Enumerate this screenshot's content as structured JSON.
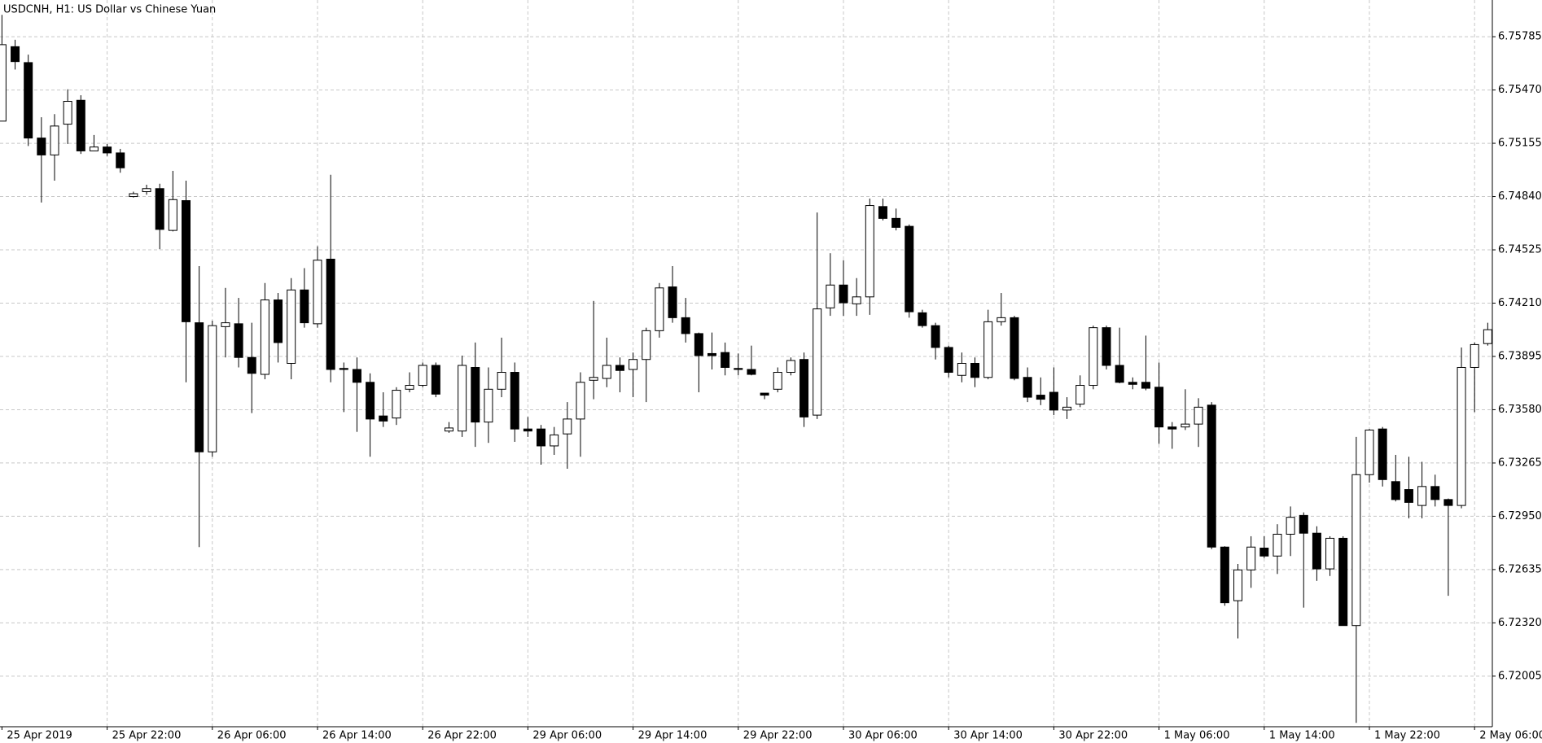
{
  "chart_data": {
    "type": "candlestick",
    "title": "USDCNH, H1:  US Dollar vs Chinese Yuan",
    "categories": [
      "25 Apr 2019",
      null,
      null,
      null,
      null,
      null,
      null,
      null,
      "25 Apr 22:00",
      null,
      null,
      null,
      null,
      null,
      null,
      null,
      "26 Apr 06:00",
      null,
      null,
      null,
      null,
      null,
      null,
      null,
      "26 Apr 14:00",
      null,
      null,
      null,
      null,
      null,
      null,
      null,
      "26 Apr 22:00",
      null,
      null,
      null,
      null,
      null,
      null,
      null,
      "29 Apr 06:00",
      null,
      null,
      null,
      null,
      null,
      null,
      null,
      "29 Apr 14:00",
      null,
      null,
      null,
      null,
      null,
      null,
      null,
      "29 Apr 22:00",
      null,
      null,
      null,
      null,
      null,
      null,
      null,
      "30 Apr 06:00",
      null,
      null,
      null,
      null,
      null,
      null,
      null,
      "30 Apr 14:00",
      null,
      null,
      null,
      null,
      null,
      null,
      null,
      "30 Apr 22:00",
      null,
      null,
      null,
      null,
      null,
      null,
      null,
      "1 May 06:00",
      null,
      null,
      null,
      null,
      null,
      null,
      null,
      "1 May 14:00",
      null,
      null,
      null,
      null,
      null,
      null,
      null,
      "1 May 22:00",
      null,
      null,
      null,
      null,
      null,
      null,
      null,
      "2 May 06:00",
      null
    ],
    "open": [
      6.75286,
      6.75726,
      6.75632,
      6.75186,
      6.75086,
      6.75268,
      6.75409,
      6.7511,
      6.75133,
      6.75098,
      6.7484,
      6.74869,
      6.74887,
      6.7464,
      6.74816,
      6.74094,
      6.73331,
      6.74071,
      6.74088,
      6.73889,
      6.73789,
      6.74229,
      6.73854,
      6.74288,
      6.74088,
      6.7447,
      6.73824,
      6.73818,
      6.73742,
      6.73543,
      6.73531,
      6.73701,
      6.73724,
      6.73842,
      6.73454,
      6.73454,
      6.7383,
      6.73507,
      6.73701,
      6.73801,
      6.73466,
      6.73466,
      6.73366,
      6.73437,
      6.73525,
      6.73754,
      6.73765,
      6.73842,
      6.73818,
      6.73877,
      6.74047,
      6.74306,
      6.74124,
      6.7403,
      6.73912,
      6.73918,
      6.73824,
      6.73818,
      6.73678,
      6.73701,
      6.73801,
      6.73877,
      6.73548,
      6.74182,
      6.74317,
      6.74206,
      6.74247,
      6.74781,
      6.74711,
      6.74664,
      6.74153,
      6.74077,
      6.73948,
      6.73783,
      6.73854,
      6.73771,
      6.741,
      6.74124,
      6.73771,
      6.73666,
      6.73683,
      6.73578,
      6.73613,
      6.73724,
      6.74065,
      6.73842,
      6.73742,
      6.73742,
      6.73713,
      6.73478,
      6.73478,
      6.73495,
      6.73607,
      6.72768,
      6.72451,
      6.72633,
      6.72762,
      6.72715,
      6.72844,
      6.72955,
      6.7285,
      6.72639,
      6.7282,
      6.72304,
      6.73196,
      6.73466,
      6.73155,
      6.73108,
      6.73014,
      6.73126,
      6.73049,
      6.73014,
      6.7383,
      6.73971
    ],
    "high": [
      6.75914,
      6.75767,
      6.75679,
      6.75309,
      6.75327,
      6.75474,
      6.75439,
      6.75204,
      6.75151,
      6.75122,
      6.74869,
      6.7491,
      6.74916,
      6.74992,
      6.74934,
      6.74429,
      6.74106,
      6.743,
      6.74241,
      6.74094,
      6.74329,
      6.7427,
      6.74358,
      6.74417,
      6.74546,
      6.74969,
      6.73859,
      6.73889,
      6.73795,
      6.73683,
      6.73713,
      6.73801,
      6.73859,
      6.73859,
      6.73507,
      6.739,
      6.73977,
      6.7383,
      6.74006,
      6.73859,
      6.73537,
      6.7349,
      6.73478,
      6.73625,
      6.73801,
      6.74223,
      6.74006,
      6.73889,
      6.73918,
      6.74065,
      6.74329,
      6.74429,
      6.74241,
      6.74036,
      6.74036,
      6.73977,
      6.73912,
      6.73959,
      6.73678,
      6.7383,
      6.73889,
      6.73918,
      6.74746,
      6.74505,
      6.74464,
      6.74358,
      6.74828,
      6.74828,
      6.74769,
      6.74675,
      6.74171,
      6.74094,
      6.73959,
      6.73918,
      6.73889,
      6.74171,
      6.7427,
      6.74135,
      6.7383,
      6.73771,
      6.7383,
      6.73654,
      6.73783,
      6.74077,
      6.74077,
      6.74065,
      6.73771,
      6.74018,
      6.73859,
      6.73507,
      6.73701,
      6.73648,
      6.73625,
      6.72773,
      6.72668,
      6.72832,
      6.72832,
      6.72903,
      6.73008,
      6.72973,
      6.72891,
      6.72832,
      6.72832,
      6.73419,
      6.73466,
      6.73478,
      6.73313,
      6.73302,
      6.73272,
      6.73196,
      6.73055,
      6.73948,
      6.73977,
      6.74094
    ],
    "low": [
      6.75286,
      6.75591,
      6.75139,
      6.74805,
      6.74934,
      6.75151,
      6.75092,
      6.7511,
      6.7508,
      6.74981,
      6.74834,
      6.74851,
      6.74529,
      6.74634,
      6.73742,
      6.72768,
      6.73302,
      6.73889,
      6.7383,
      6.7356,
      6.7376,
      6.73859,
      6.7376,
      6.74065,
      6.74065,
      6.73742,
      6.73566,
      6.73449,
      6.73302,
      6.73478,
      6.7349,
      6.73683,
      6.73713,
      6.73654,
      6.73443,
      6.73419,
      6.7336,
      6.73384,
      6.73654,
      6.7339,
      6.73419,
      6.73255,
      6.73313,
      6.73231,
      6.73302,
      6.73642,
      6.73713,
      6.73683,
      6.73654,
      6.73625,
      6.74006,
      6.74094,
      6.73977,
      6.73683,
      6.73818,
      6.73783,
      6.73783,
      6.73783,
      6.73642,
      6.73683,
      6.73783,
      6.73478,
      6.73525,
      6.74135,
      6.74135,
      6.74135,
      6.74141,
      6.74699,
      6.7464,
      6.74124,
      6.74065,
      6.73877,
      6.73771,
      6.73742,
      6.73713,
      6.7376,
      6.74077,
      6.73754,
      6.73625,
      6.73607,
      6.73548,
      6.73525,
      6.73595,
      6.73701,
      6.73818,
      6.73736,
      6.73701,
      6.73695,
      6.73378,
      6.73349,
      6.7346,
      6.7336,
      6.72756,
      6.72421,
      6.72228,
      6.72527,
      6.72703,
      6.72609,
      6.72715,
      6.7241,
      6.72568,
      6.72597,
      6.72304,
      6.71729,
      6.73149,
      6.73126,
      6.73038,
      6.72938,
      6.72938,
      6.73008,
      6.7248,
      6.72997,
      6.73566,
      6.73959
    ],
    "close": [
      6.75738,
      6.75638,
      6.75186,
      6.75086,
      6.75257,
      6.75403,
      6.7511,
      6.75133,
      6.75098,
      6.7501,
      6.74857,
      6.74887,
      6.74646,
      6.74822,
      6.741,
      6.73331,
      6.74077,
      6.74094,
      6.73889,
      6.73795,
      6.74229,
      6.73977,
      6.74288,
      6.74094,
      6.74464,
      6.73818,
      6.73818,
      6.73742,
      6.73525,
      6.73513,
      6.73695,
      6.73724,
      6.73842,
      6.73672,
      6.73472,
      6.73842,
      6.73507,
      6.73701,
      6.73801,
      6.73466,
      6.73454,
      6.73366,
      6.73431,
      6.73525,
      6.73742,
      6.73771,
      6.73842,
      6.73812,
      6.73877,
      6.74047,
      6.743,
      6.74124,
      6.7403,
      6.739,
      6.739,
      6.7383,
      6.73818,
      6.73789,
      6.73666,
      6.73801,
      6.73871,
      6.73537,
      6.74176,
      6.74317,
      6.74212,
      6.74247,
      6.74787,
      6.74711,
      6.74658,
      6.74159,
      6.74077,
      6.73948,
      6.73801,
      6.73854,
      6.73771,
      6.741,
      6.74124,
      6.73765,
      6.73654,
      6.73642,
      6.73578,
      6.73595,
      6.73724,
      6.74065,
      6.73842,
      6.73742,
      6.7373,
      6.73707,
      6.73478,
      6.73466,
      6.73495,
      6.73595,
      6.72768,
      6.72439,
      6.72633,
      6.72768,
      6.72715,
      6.72844,
      6.72944,
      6.7285,
      6.72639,
      6.7282,
      6.72304,
      6.73196,
      6.7346,
      6.73167,
      6.73049,
      6.73032,
      6.73126,
      6.73049,
      6.73014,
      6.7383,
      6.73965,
      6.74053
    ],
    "up_color": "#ffffff",
    "down_color": "#000000",
    "ylim": [
      6.71706,
      6.76002
    ],
    "yticks": [
      6.75785,
      {
        "value": 6.7547,
        "label": "6.75470"
      },
      6.75155,
      {
        "value": 6.7484,
        "label": "6.74840"
      },
      6.74525,
      {
        "value": 6.7421,
        "label": "6.74210"
      },
      6.73895,
      {
        "value": 6.7358,
        "label": "6.73580"
      },
      6.73265,
      {
        "value": 6.7295,
        "label": "6.72950"
      },
      6.72635,
      {
        "value": 6.7232,
        "label": "6.72320"
      },
      6.72005
    ],
    "grid": true
  }
}
